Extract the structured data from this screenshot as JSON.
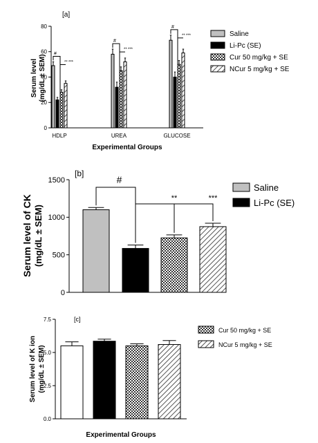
{
  "chart_data": [
    {
      "panel": "[a]",
      "type": "bar",
      "categories": [
        "HDLP",
        "UREA",
        "GLUCOSE"
      ],
      "ylabel_lines": [
        "Serum level",
        "(mg/dL ± SEM)"
      ],
      "xlabel": "Experimental Groups",
      "ylim": [
        0,
        80
      ],
      "yticks": [
        0,
        20,
        40,
        60,
        80
      ],
      "legend_position": "right",
      "series": [
        {
          "name": "Saline",
          "values": [
            49,
            58,
            69
          ],
          "errors": [
            3,
            4,
            4
          ],
          "pattern": "gray"
        },
        {
          "name": "Li-Pc (SE)",
          "values": [
            22,
            32,
            40
          ],
          "errors": [
            2,
            4,
            4
          ],
          "pattern": "black"
        },
        {
          "name": "Cur 50 mg/kg + SE",
          "values": [
            28,
            45,
            50
          ],
          "errors": [
            2,
            3,
            3
          ],
          "pattern": "check"
        },
        {
          "name": "NCur 5 mg/kg + SE",
          "values": [
            35,
            52,
            59
          ],
          "errors": [
            2,
            3,
            3
          ],
          "pattern": "hatch"
        }
      ],
      "annotations": {
        "hash": "#",
        "cur": "**",
        "ncur": "***"
      }
    },
    {
      "panel": "[b]",
      "type": "bar",
      "categories": [
        "Saline",
        "Li-Pc (SE)",
        "Cur 50 mg/kg + SE",
        "NCur 5 mg/kg + SE"
      ],
      "values": [
        1100,
        585,
        725,
        875
      ],
      "errors": [
        30,
        45,
        40,
        45
      ],
      "patterns": [
        "gray",
        "black",
        "check",
        "hatch"
      ],
      "ylabel_lines": [
        "Serum level of CK",
        "(mg/dL ± SEM)"
      ],
      "ylim": [
        0,
        1500
      ],
      "yticks": [
        0,
        500,
        1000,
        1500
      ],
      "legend": [
        "Saline",
        "Li-Pc (SE)"
      ],
      "legend_position": "right",
      "annotations": {
        "hash": "#",
        "cur": "**",
        "ncur": "***"
      }
    },
    {
      "panel": "[c]",
      "type": "bar",
      "categories": [
        "Saline",
        "Li-Pc (SE)",
        "Cur 50 mg/kg + SE",
        "NCur 5 mg/kg + SE"
      ],
      "values": [
        5.5,
        5.85,
        5.5,
        5.6
      ],
      "errors": [
        0.3,
        0.15,
        0.15,
        0.3
      ],
      "patterns": [
        "white",
        "black",
        "check",
        "hatch"
      ],
      "ylabel_lines": [
        "Serum level of K ion",
        "(mg/dL ± SEM)"
      ],
      "xlabel": "Experimental Groups",
      "ylim": [
        0,
        7.5
      ],
      "yticks": [
        "0.0",
        "2.5",
        "5.0",
        "7.5"
      ],
      "legend": [
        "Cur 50 mg/kg + SE",
        "NCur 5 mg/kg + SE"
      ],
      "legend_position": "right"
    }
  ]
}
